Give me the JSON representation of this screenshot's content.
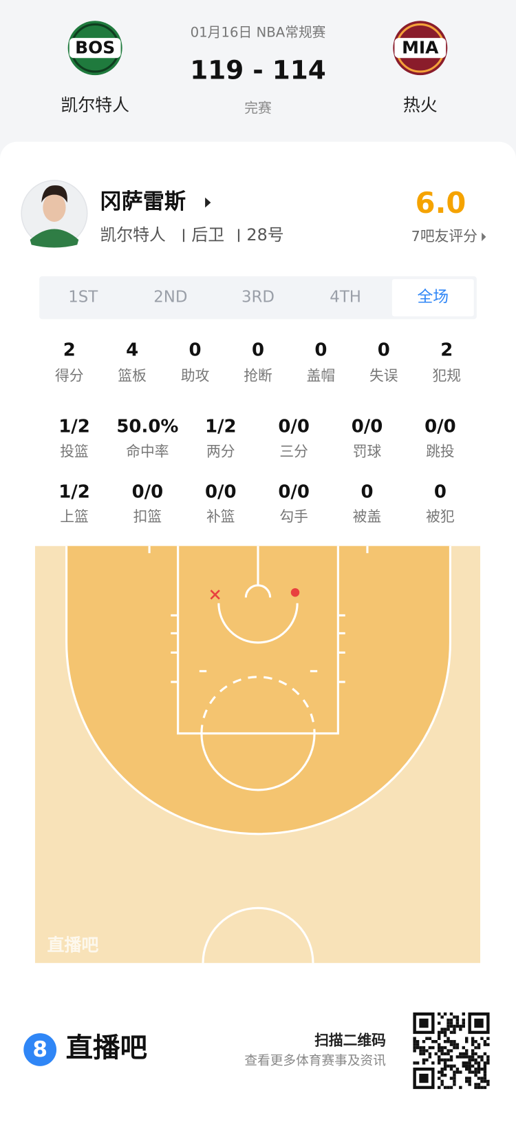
{
  "header": {
    "date_league": "01月16日 NBA常规赛",
    "score": "119 - 114",
    "status": "完赛",
    "home": {
      "abbr": "BOS",
      "name": "凯尔特人"
    },
    "away": {
      "abbr": "MIA",
      "name": "热火"
    }
  },
  "player": {
    "name": "冈萨雷斯",
    "team": "凯尔特人",
    "position": "后卫",
    "number": "28号",
    "rating": "6.0",
    "rating_label": "7吧友评分"
  },
  "tabs": {
    "items": [
      "1ST",
      "2ND",
      "3RD",
      "4TH",
      "全场"
    ],
    "active": 4
  },
  "stats": {
    "rows": [
      [
        {
          "value": "2",
          "label": "得分"
        },
        {
          "value": "4",
          "label": "篮板"
        },
        {
          "value": "0",
          "label": "助攻"
        },
        {
          "value": "0",
          "label": "抢断"
        },
        {
          "value": "0",
          "label": "盖帽"
        },
        {
          "value": "0",
          "label": "失误"
        },
        {
          "value": "2",
          "label": "犯规"
        }
      ],
      [
        {
          "value": "1/2",
          "label": "投篮"
        },
        {
          "value": "50.0%",
          "label": "命中率"
        },
        {
          "value": "1/2",
          "label": "两分"
        },
        {
          "value": "0/0",
          "label": "三分"
        },
        {
          "value": "0/0",
          "label": "罚球"
        },
        {
          "value": "0/0",
          "label": "跳投"
        }
      ],
      [
        {
          "value": "1/2",
          "label": "上篮"
        },
        {
          "value": "0/0",
          "label": "扣篮"
        },
        {
          "value": "0/0",
          "label": "补篮"
        },
        {
          "value": "0/0",
          "label": "勾手"
        },
        {
          "value": "0",
          "label": "被盖"
        },
        {
          "value": "0",
          "label": "被犯"
        }
      ]
    ]
  },
  "court": {
    "watermark": "直播吧"
  },
  "footer": {
    "logo": "8",
    "brand": "直播吧",
    "qr_title": "扫描二维码",
    "qr_subtitle": "查看更多体育赛事及资讯"
  }
}
